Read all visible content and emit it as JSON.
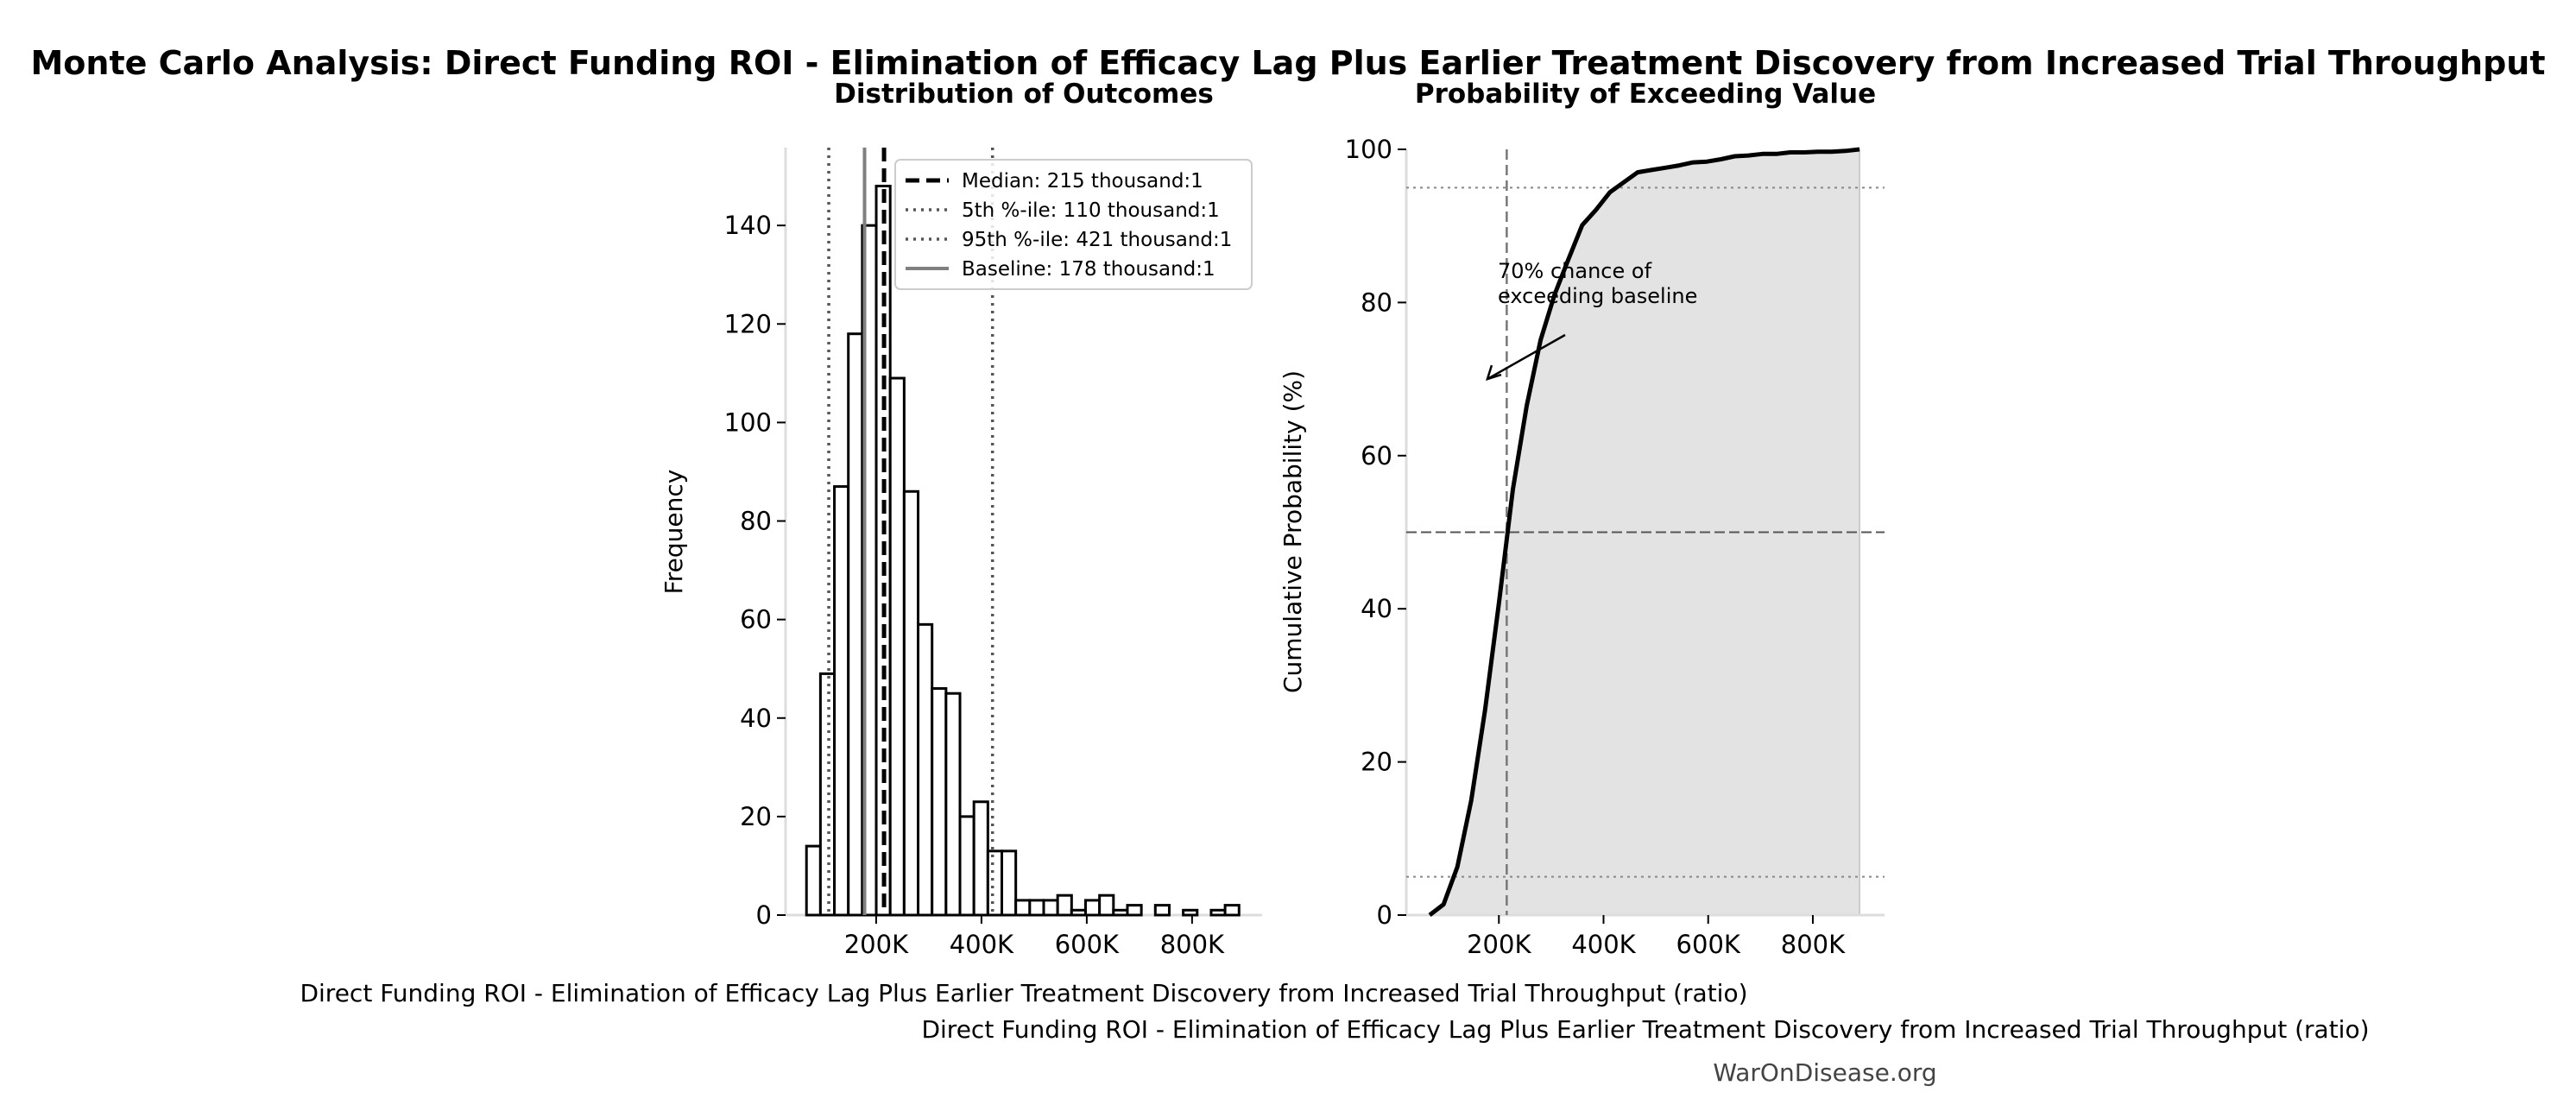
{
  "title": "Monte Carlo Analysis: Direct Funding ROI - Elimination of Efficacy Lag Plus Earlier Treatment Discovery from Increased Trial Throughput",
  "watermark": "WarOnDisease.org",
  "chart_data": [
    {
      "type": "bar",
      "title": "Distribution of Outcomes",
      "xlabel": "Direct Funding ROI - Elimination of Efficacy Lag Plus Earlier Treatment Discovery from Increased Trial Throughput (ratio)",
      "ylabel": "Frequency",
      "bin_start": 67700,
      "bin_width": 26500,
      "values": [
        14,
        49,
        87,
        118,
        140,
        148,
        109,
        86,
        59,
        46,
        45,
        20,
        23,
        13,
        13,
        3,
        3,
        3,
        4,
        1,
        3,
        4,
        1,
        2,
        0,
        2,
        0,
        1,
        0,
        1,
        2
      ],
      "xlim": [
        28000,
        933000
      ],
      "ylim": [
        0,
        155.8
      ],
      "xticks": [
        200000,
        400000,
        600000,
        800000
      ],
      "xtick_labels": [
        "200K",
        "400K",
        "600K",
        "800K"
      ],
      "yticks": [
        0,
        20,
        40,
        60,
        80,
        100,
        120,
        140
      ],
      "reference_lines": [
        {
          "name": "Median: 215 thousand:1",
          "value": 215000,
          "style": "dashed",
          "color": "#000000"
        },
        {
          "name": "5th %-ile: 110 thousand:1",
          "value": 110000,
          "style": "dotted",
          "color": "#555555"
        },
        {
          "name": "95th %-ile: 421 thousand:1",
          "value": 421000,
          "style": "dotted",
          "color": "#555555"
        },
        {
          "name": "Baseline: 178 thousand:1",
          "value": 178000,
          "style": "solid",
          "color": "#808080"
        }
      ],
      "legend_position": "top-right",
      "grid": false
    },
    {
      "type": "line",
      "title": "Probability of Exceeding Value",
      "xlabel": "Direct Funding ROI - Elimination of Efficacy Lag Plus Earlier Treatment Discovery from Increased Trial Throughput (ratio)",
      "ylabel": "Cumulative Probability (%)",
      "xlim": [
        23000,
        937000
      ],
      "ylim": [
        0,
        100
      ],
      "xticks": [
        200000,
        400000,
        600000,
        800000
      ],
      "xtick_labels": [
        "200K",
        "400K",
        "600K",
        "800K"
      ],
      "yticks": [
        0,
        20,
        40,
        60,
        80,
        100
      ],
      "hlines": [
        95,
        50,
        5
      ],
      "vline": 215000,
      "fill_color": "#e3e3e3",
      "annotation": {
        "lines": [
          "70% chance of",
          "exceeding baseline"
        ],
        "x": 178000,
        "y": 70
      },
      "grid": false
    }
  ]
}
